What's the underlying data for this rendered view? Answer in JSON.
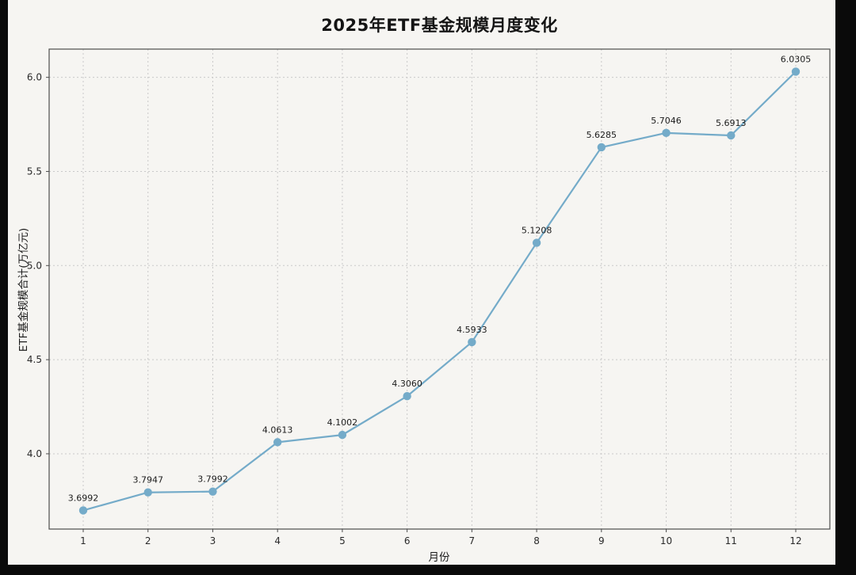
{
  "frame": {
    "background_color": "#0a0a0a",
    "paper_color": "#f6f5f2"
  },
  "chart_data": {
    "type": "line",
    "title": "2025年ETF基金规模月度变化",
    "xlabel": "月份",
    "ylabel": "ETF基金规模合计(万亿元)",
    "x": [
      1,
      2,
      3,
      4,
      5,
      6,
      7,
      8,
      9,
      10,
      11,
      12
    ],
    "x_tick_labels": [
      "1",
      "2",
      "3",
      "4",
      "5",
      "6",
      "7",
      "8",
      "9",
      "10",
      "11",
      "12"
    ],
    "values": [
      3.6992,
      3.7947,
      3.7992,
      4.0613,
      4.1002,
      4.306,
      4.5933,
      5.1208,
      5.6285,
      5.7046,
      5.6913,
      6.0305
    ],
    "point_labels": [
      "3.6992",
      "3.7947",
      "3.7992",
      "4.0613",
      "4.1002",
      "4.3060",
      "4.5933",
      "5.1208",
      "5.6285",
      "5.7046",
      "5.6913",
      "6.0305"
    ],
    "y_ticks": [
      4.0,
      4.5,
      5.0,
      5.5,
      6.0
    ],
    "y_tick_labels": [
      "4.0",
      "4.5",
      "5.0",
      "5.5",
      "6.0"
    ],
    "ylim": [
      3.6,
      6.15
    ],
    "grid": true,
    "legend_position": "none",
    "line_color": "#74abc9",
    "marker_color": "#74abc9"
  }
}
